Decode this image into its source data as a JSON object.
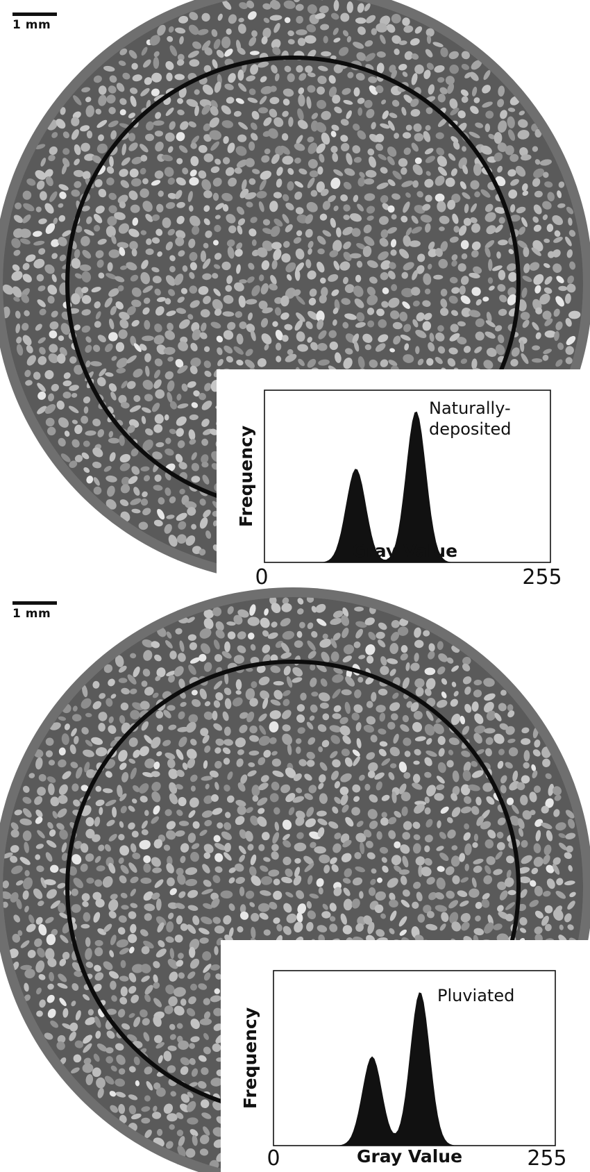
{
  "panels": [
    {
      "scale_bar_label": "1 mm",
      "sample_label": "Naturally-\ndeposited",
      "sample_label_lines": [
        "Naturally-",
        "deposited"
      ],
      "histogram": {
        "ylabel": "Frequency",
        "xlabel": "Gray Value",
        "x_min_label": "0",
        "x_max_label": "255",
        "peaks": [
          {
            "center": 0.32,
            "relative_height": 0.62
          },
          {
            "center": 0.53,
            "relative_height": 1.0
          }
        ]
      }
    },
    {
      "scale_bar_label": "1 mm",
      "sample_label": "Pluviated",
      "sample_label_lines": [
        "Pluviated"
      ],
      "histogram": {
        "ylabel": "Frequency",
        "xlabel": "Gray Value",
        "x_min_label": "0",
        "x_max_label": "255",
        "peaks": [
          {
            "center": 0.35,
            "relative_height": 0.58
          },
          {
            "center": 0.52,
            "relative_height": 1.0
          }
        ]
      }
    }
  ],
  "colors": {
    "background": "#ffffff",
    "outer_ring": "#6f6f6f",
    "matrix": "#5a5a5a",
    "grain_light": "#c9c9c9",
    "grain_dark": "#8e8e8e",
    "circle_outline": "#0c0c0c",
    "histogram_fill": "#111111"
  }
}
